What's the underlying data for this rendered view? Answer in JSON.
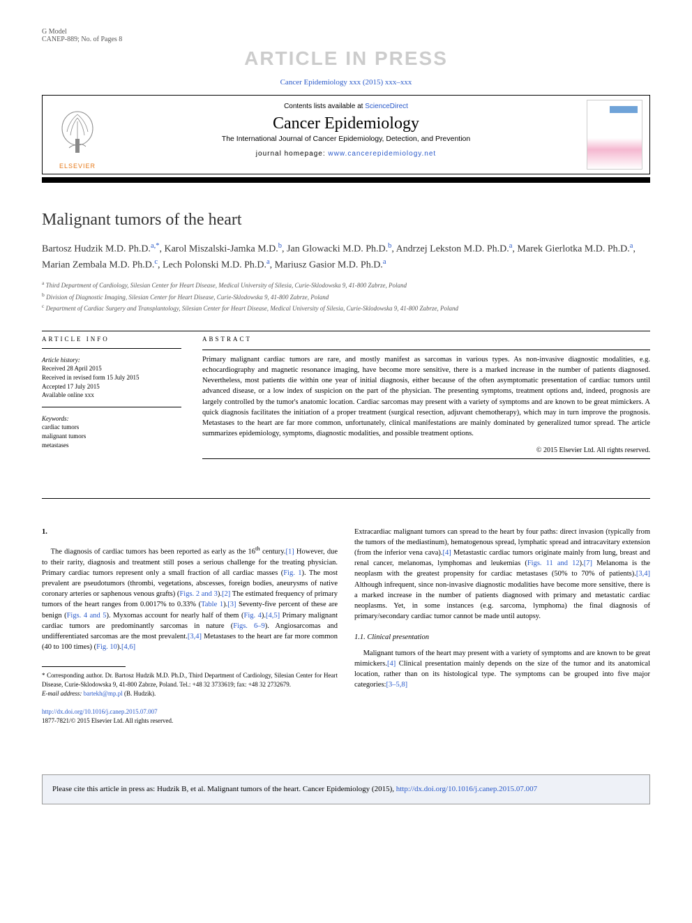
{
  "header": {
    "gmodel": "G Model",
    "docref": "CANEP-889; No. of Pages 8",
    "watermark": "ARTICLE IN PRESS",
    "journal_ref": "Cancer Epidemiology xxx (2015) xxx–xxx",
    "contents_prefix": "Contents lists available at ",
    "contents_link": "ScienceDirect",
    "journal_name": "Cancer Epidemiology",
    "journal_subtitle": "The International Journal of Cancer Epidemiology, Detection, and Prevention",
    "homepage_label": "journal homepage: ",
    "homepage_url": "www.cancerepidemiology.net",
    "elsevier": "ELSEVIER"
  },
  "article": {
    "title": "Malignant tumors of the heart",
    "authors_html": "Bartosz Hudzik M.D. Ph.D.|a,*|, Karol Miszalski-Jamka M.D.|b|, Jan Glowacki M.D. Ph.D.|b|, Andrzej Lekston M.D. Ph.D.|a|, Marek Gierlotka M.D. Ph.D.|a|, Marian Zembala M.D. Ph.D.|c|, Lech Polonski M.D. Ph.D.|a|, Mariusz Gasior M.D. Ph.D.|a|",
    "affiliations": [
      {
        "sup": "a",
        "text": "Third Department of Cardiology, Silesian Center for Heart Disease, Medical University of Silesia, Curie-Sklodowska 9, 41-800 Zabrze, Poland"
      },
      {
        "sup": "b",
        "text": "Division of Diagnostic Imaging, Silesian Center for Heart Disease, Curie-Sklodowska 9, 41-800 Zabrze, Poland"
      },
      {
        "sup": "c",
        "text": "Department of Cardiac Surgery and Transplantology, Silesian Center for Heart Disease, Medical University of Silesia, Curie-Sklodowska 9, 41-800 Zabrze, Poland"
      }
    ]
  },
  "info": {
    "header": "ARTICLE INFO",
    "history_label": "Article history:",
    "received": "Received 28 April 2015",
    "revised": "Received in revised form 15 July 2015",
    "accepted": "Accepted 17 July 2015",
    "online": "Available online xxx",
    "keywords_label": "Keywords:",
    "kw1": "cardiac tumors",
    "kw2": "malignant tumors",
    "kw3": "metastases"
  },
  "abstract": {
    "header": "ABSTRACT",
    "text": "Primary malignant cardiac tumors are rare, and mostly manifest as sarcomas in various types. As non-invasive diagnostic modalities, e.g. echocardiography and magnetic resonance imaging, have become more sensitive, there is a marked increase in the number of patients diagnosed. Nevertheless, most patients die within one year of initial diagnosis, either because of the often asymptomatic presentation of cardiac tumors until advanced disease, or a low index of suspicion on the part of the physician. The presenting symptoms, treatment options and, indeed, prognosis are largely controlled by the tumor's anatomic location. Cardiac sarcomas may present with a variety of symptoms and are known to be great mimickers. A quick diagnosis facilitates the initiation of a proper treatment (surgical resection, adjuvant chemotherapy), which may in turn improve the prognosis. Metastases to the heart are far more common, unfortunately, clinical manifestations are mainly dominated by generalized tumor spread. The article summarizes epidemiology, symptoms, diagnostic modalities, and possible treatment options.",
    "copyright": "© 2015 Elsevier Ltd. All rights reserved."
  },
  "body": {
    "sec1": "1.",
    "p1a": "The diagnosis of cardiac tumors has been reported as early as the 16",
    "p1a_sup": "th",
    "p1b": " century.",
    "r1": "[1]",
    "p1c": " However, due to their rarity, diagnosis and treatment still poses a serious challenge for the treating physician. Primary cardiac tumors represent only a small fraction of all cardiac masses (",
    "fig1": "Fig. 1",
    "p1d": "). The most prevalent are pseudotumors (thrombi, vegetations, abscesses, foreign bodies, aneurysms of native coronary arteries or saphenous venous grafts) (",
    "fig23": "Figs. 2 and 3",
    "p1e": ").",
    "r2": "[2]",
    "p1f": " The estimated frequency of primary tumors of the heart ranges from 0.0017% to 0.33% (",
    "tab1": "Table 1",
    "p1g": ").",
    "r3": "[3]",
    "p1h": " Seventy-five percent of these are benign (",
    "fig45": "Figs. 4 and 5",
    "p1i": "). Myxomas account for nearly half of them (",
    "fig4": "Fig. 4",
    "p1j": ").",
    "r45": "[4,5]",
    "p1k": " Primary malignant cardiac tumors are predominantly sarcomas in nature (",
    "fig69": "Figs. 6–9",
    "p1l": "). Angiosarcomas and undifferentiated sarcomas are the most prevalent.",
    "r34": "[3,4]",
    "p1m": " Metastases to the heart are far more common (40 to 100 times) (",
    "fig10": "Fig. 10",
    "p1n": ").",
    "r46": "[4,6]",
    "p2a": "Extracardiac malignant tumors can spread to the heart by four paths: direct invasion (typically from the tumors of the mediastinum), hematogenous spread, lymphatic spread and intracavitary extension (from the inferior vena cava).",
    "r4": "[4]",
    "p2b": " Metastastic cardiac tumors originate mainly from lung, breast and renal cancer, melanomas, lymphomas and leukemias (",
    "fig1112": "Figs. 11 and 12",
    "p2c": ").",
    "r7": "[7]",
    "p2d": " Melanoma is the neoplasm with the greatest propensity for cardiac metastases (50% to 70% of patients).",
    "r34b": "[3,4]",
    "p2e": " Although infrequent, since non-invasive diagnostic modalities have become more sensitive, there is a marked increase in the number of patients diagnosed with primary and metastatic cardiac neoplasms. Yet, in some instances (e.g. sarcoma, lymphoma) the final diagnosis of primary/secondary cardiac tumor cannot be made until autopsy.",
    "subsec11": "1.1. Clinical presentation",
    "p3a": "Malignant tumors of the heart may present with a variety of symptoms and are known to be great mimickers.",
    "r4b": "[4]",
    "p3b": " Clinical presentation mainly depends on the size of the tumor and its anatomical location, rather than on its histological type. The symptoms can be grouped into five major categories:",
    "r358": "[3–5,8]"
  },
  "footnotes": {
    "corr": "* Corresponding author. Dr. Bartosz Hudzik M.D. Ph.D., Third Department of Cardiology, Silesian Center for Heart Disease, Curie-Sklodowska 9, 41-800 Zabrze, Poland. Tel.: +48 32 3733619; fax: +48 32 2732679.",
    "email_label": "E-mail address: ",
    "email": "bartekh@mp.pl",
    "email_suffix": " (B. Hudzik).",
    "doi": "http://dx.doi.org/10.1016/j.canep.2015.07.007",
    "issn": "1877-7821/© 2015 Elsevier Ltd. All rights reserved."
  },
  "citebox": {
    "prefix": "Please cite this article in press as: Hudzik B, et al. Malignant tumors of the heart. Cancer Epidemiology (2015), ",
    "url": "http://dx.doi.org/10.1016/j.canep.2015.07.007"
  },
  "colors": {
    "link": "#2858c9",
    "elsevier": "#e67817",
    "citebox_bg": "#eef1f7"
  }
}
